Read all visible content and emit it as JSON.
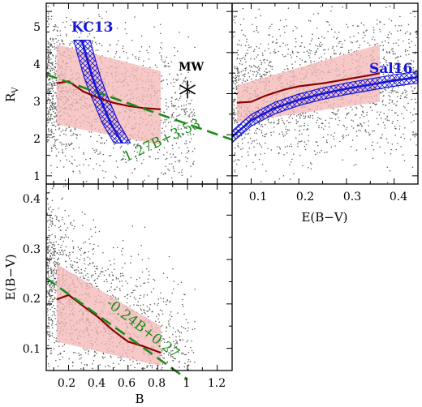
{
  "chart_data": [
    {
      "panel": "top-left",
      "type": "scatter",
      "xlabel": "",
      "ylabel": "R_V",
      "xlim": [
        0.05,
        1.3
      ],
      "ylim": [
        0.8,
        5.2
      ],
      "yticks": [
        "1",
        "2",
        "3",
        "4",
        "5"
      ],
      "binned_median": {
        "x": [
          0.12,
          0.2,
          0.3,
          0.4,
          0.5,
          0.6,
          0.7,
          0.82
        ],
        "y": [
          3.25,
          3.3,
          3.05,
          2.9,
          2.78,
          2.7,
          2.65,
          2.62
        ]
      },
      "scatter_band": {
        "x": [
          0.12,
          0.82
        ],
        "upper": [
          4.2,
          3.55
        ],
        "lower": [
          2.25,
          1.75
        ]
      },
      "fit_line": {
        "label": "-1.27B+3.53",
        "slope": -1.27,
        "intercept": 3.53
      },
      "kc13_curve": {
        "label": "KC13",
        "x": [
          0.29,
          0.32,
          0.36,
          0.4,
          0.44,
          0.48,
          0.52,
          0.56
        ],
        "y": [
          4.3,
          3.9,
          3.4,
          3.0,
          2.65,
          2.3,
          2.05,
          1.8
        ]
      },
      "mw_point": {
        "label": "MW",
        "x": 1.0,
        "y": 3.1
      }
    },
    {
      "panel": "top-right",
      "type": "scatter",
      "xlabel": "E(B−V)",
      "ylabel": "",
      "xlim": [
        0.06,
        0.45
      ],
      "ylim": [
        0.8,
        5.2
      ],
      "xticks": [
        "0.1",
        "0.2",
        "0.3",
        "0.4"
      ],
      "binned_median": {
        "x": [
          0.07,
          0.1,
          0.13,
          0.17,
          0.2,
          0.25,
          0.3,
          0.35,
          0.37
        ],
        "y": [
          2.78,
          2.8,
          2.95,
          3.1,
          3.18,
          3.25,
          3.35,
          3.45,
          3.5
        ]
      },
      "scatter_band": {
        "x": [
          0.07,
          0.37
        ],
        "upper": [
          3.2,
          4.2
        ],
        "lower": [
          2.3,
          2.8
        ]
      },
      "sal16_curve": {
        "label": "Sal16",
        "x": [
          0.06,
          0.1,
          0.15,
          0.2,
          0.25,
          0.3,
          0.35,
          0.4,
          0.45
        ],
        "y": [
          1.95,
          2.35,
          2.65,
          2.85,
          3.0,
          3.12,
          3.22,
          3.32,
          3.4
        ]
      }
    },
    {
      "panel": "bottom-left",
      "type": "scatter",
      "xlabel": "B",
      "ylabel": "E(B−V)",
      "xlim": [
        0.05,
        1.3
      ],
      "ylim": [
        0.05,
        0.47
      ],
      "xticks": [
        "0.2",
        "0.4",
        "0.6",
        "0.8",
        "1",
        "1.2"
      ],
      "yticks": [
        "0.1",
        "0.2",
        "0.3",
        "0.4"
      ],
      "binned_median": {
        "x": [
          0.12,
          0.2,
          0.3,
          0.4,
          0.5,
          0.6,
          0.7,
          0.82
        ],
        "y": [
          0.21,
          0.22,
          0.195,
          0.17,
          0.14,
          0.115,
          0.105,
          0.09
        ]
      },
      "scatter_band": {
        "x": [
          0.12,
          0.82
        ],
        "upper": [
          0.29,
          0.15
        ],
        "lower": [
          0.115,
          0.06
        ]
      },
      "fit_line": {
        "label": "-0.24B+0.27",
        "slope": -0.24,
        "intercept": 0.27
      }
    }
  ],
  "labels": {
    "rv_axis": "R",
    "rv_sub": "V",
    "ebv_x_axis": "E(B−V)",
    "ebv_y_axis": "E(B−V)",
    "b_axis": "B",
    "kc13": "KC13",
    "mw": "MW",
    "sal16": "Sal16",
    "fit_top": "-1.27B+3.53",
    "fit_bottom": "-0.24B+0.27"
  },
  "colors": {
    "band": "#f4b8b8",
    "median": "#8b0000",
    "fit": "#1a8c1a",
    "model": "#1515d8",
    "points": "#555555"
  }
}
